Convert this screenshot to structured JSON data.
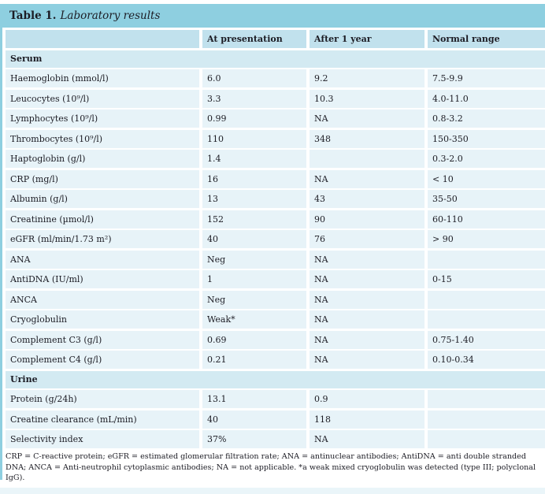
{
  "title": {
    "prefix": "Table 1.",
    "caption": "Laboratory results"
  },
  "columns": [
    "",
    "At presentation",
    "After 1 year",
    "Normal range"
  ],
  "sections": [
    {
      "name": "Serum",
      "rows": [
        {
          "label": "Haemoglobin (mmol/l)",
          "at_presentation": "6.0",
          "after_1_year": "9.2",
          "normal_range": "7.5-9.9"
        },
        {
          "label": "Leucocytes (10⁹/l)",
          "at_presentation": "3.3",
          "after_1_year": "10.3",
          "normal_range": "4.0-11.0"
        },
        {
          "label": "Lymphocytes (10⁹/l)",
          "at_presentation": "0.99",
          "after_1_year": "NA",
          "normal_range": "0.8-3.2"
        },
        {
          "label": "Thrombocytes (10⁹/l)",
          "at_presentation": "110",
          "after_1_year": "348",
          "normal_range": "150-350"
        },
        {
          "label": "Haptoglobin (g/l)",
          "at_presentation": "1.4",
          "after_1_year": "",
          "normal_range": "0.3-2.0"
        },
        {
          "label": "CRP (mg/l)",
          "at_presentation": "16",
          "after_1_year": "NA",
          "normal_range": "< 10"
        },
        {
          "label": "Albumin (g/l)",
          "at_presentation": "13",
          "after_1_year": "43",
          "normal_range": "35-50"
        },
        {
          "label": "Creatinine (µmol/l)",
          "at_presentation": "152",
          "after_1_year": "90",
          "normal_range": "60-110"
        },
        {
          "label": "eGFR (ml/min/1.73 m²)",
          "at_presentation": "40",
          "after_1_year": "76",
          "normal_range": "> 90"
        },
        {
          "label": "ANA",
          "at_presentation": "Neg",
          "after_1_year": "NA",
          "normal_range": ""
        },
        {
          "label": "AntiDNA (IU/ml)",
          "at_presentation": "1",
          "after_1_year": "NA",
          "normal_range": "0-15"
        },
        {
          "label": "ANCA",
          "at_presentation": "Neg",
          "after_1_year": "NA",
          "normal_range": ""
        },
        {
          "label": "Cryoglobulin",
          "at_presentation": "Weak*",
          "after_1_year": "NA",
          "normal_range": ""
        },
        {
          "label": "Complement C3 (g/l)",
          "at_presentation": "0.69",
          "after_1_year": "NA",
          "normal_range": "0.75-1.40"
        },
        {
          "label": "Complement C4 (g/l)",
          "at_presentation": "0.21",
          "after_1_year": "NA",
          "normal_range": "0.10-0.34"
        }
      ]
    },
    {
      "name": "Urine",
      "rows": [
        {
          "label": "Protein (g/24h)",
          "at_presentation": "13.1",
          "after_1_year": "0.9",
          "normal_range": ""
        },
        {
          "label": "Creatine clearance (mL/min)",
          "at_presentation": "40",
          "after_1_year": "118",
          "normal_range": ""
        },
        {
          "label": "Selectivity index",
          "at_presentation": "37%",
          "after_1_year": "NA",
          "normal_range": ""
        }
      ]
    }
  ],
  "footnote": "CRP = C-reactive protein; eGFR = estimated glomerular filtration rate; ANA = antinuclear antibodies; AntiDNA = anti double stranded DNA; ANCA = Anti-neutrophil cytoplasmic antibodies; NA = not applicable. *a weak mixed cryoglobulin was detected (type III; polyclonal IgG).",
  "colors": {
    "accent": "#8ecfe0",
    "header": "#c1e1ed",
    "section": "#d3eaf2",
    "row": "#e7f3f8",
    "strip": "#eaf5f9",
    "text": "#1c1c24"
  }
}
